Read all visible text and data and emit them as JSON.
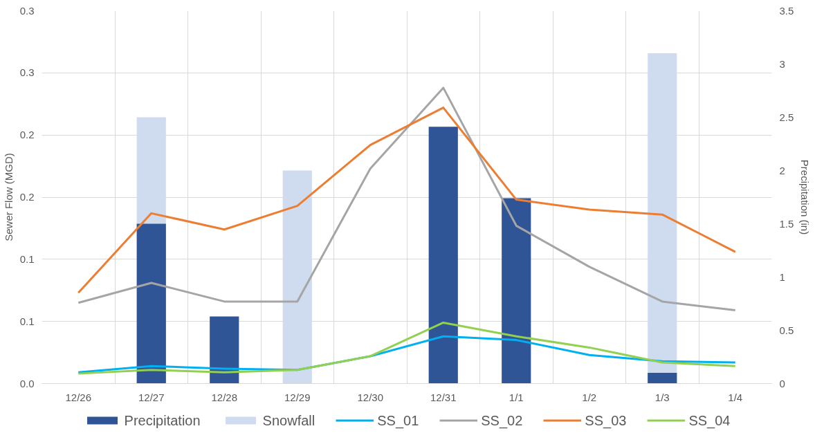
{
  "chart_data": {
    "type": "bar",
    "ylabel": "Sewer Flow (MGD)",
    "y2label": "Precipitation (in)",
    "categories": [
      "12/26",
      "12/27",
      "12/28",
      "12/29",
      "12/30",
      "12/31",
      "1/1",
      "1/2",
      "1/3",
      "1/4"
    ],
    "ylim": [
      0,
      0.3
    ],
    "yticks": [
      {
        "value": 0,
        "label": "0.0"
      },
      {
        "value": 0.05,
        "label": "0.1"
      },
      {
        "value": 0.1,
        "label": "0.1"
      },
      {
        "value": 0.15,
        "label": "0.2"
      },
      {
        "value": 0.2,
        "label": "0.2"
      },
      {
        "value": 0.25,
        "label": "0.3"
      },
      {
        "value": 0.3,
        "label": "0.3"
      }
    ],
    "y2lim": [
      0,
      3.5
    ],
    "y2ticks": [
      0,
      0.5,
      1,
      1.5,
      2,
      2.5,
      3,
      3.5
    ],
    "grid": true,
    "legend": "bottom",
    "series": [
      {
        "name": "Snowfall",
        "axis": "y2",
        "color": "#cfdcf0",
        "values": [
          0,
          2.5,
          0,
          2.0,
          0,
          0,
          0,
          0,
          3.1,
          0
        ]
      },
      {
        "name": "Precipitation",
        "axis": "y2",
        "color": "#2f5597",
        "values": [
          0,
          1.5,
          0.63,
          0,
          0,
          2.41,
          1.74,
          0,
          0.1,
          0
        ]
      },
      {
        "name": "SS_01",
        "type": "line",
        "color": "#00b0f0",
        "values": [
          0.009,
          0.014,
          0.012,
          0.011,
          0.022,
          0.038,
          0.035,
          0.023,
          0.018,
          0.017
        ]
      },
      {
        "name": "SS_02",
        "type": "line",
        "color": "#a5a5a5",
        "values": [
          0.065,
          0.081,
          0.066,
          0.066,
          0.173,
          0.238,
          0.127,
          0.094,
          0.066,
          0.059
        ]
      },
      {
        "name": "SS_03",
        "type": "line",
        "color": "#ed7d31",
        "values": [
          0.073,
          0.137,
          0.124,
          0.143,
          0.192,
          0.222,
          0.148,
          0.14,
          0.136,
          0.106
        ]
      },
      {
        "name": "SS_04",
        "type": "line",
        "color": "#92d050",
        "values": [
          0.008,
          0.011,
          0.009,
          0.011,
          0.022,
          0.049,
          0.038,
          0.029,
          0.017,
          0.014
        ]
      }
    ]
  }
}
